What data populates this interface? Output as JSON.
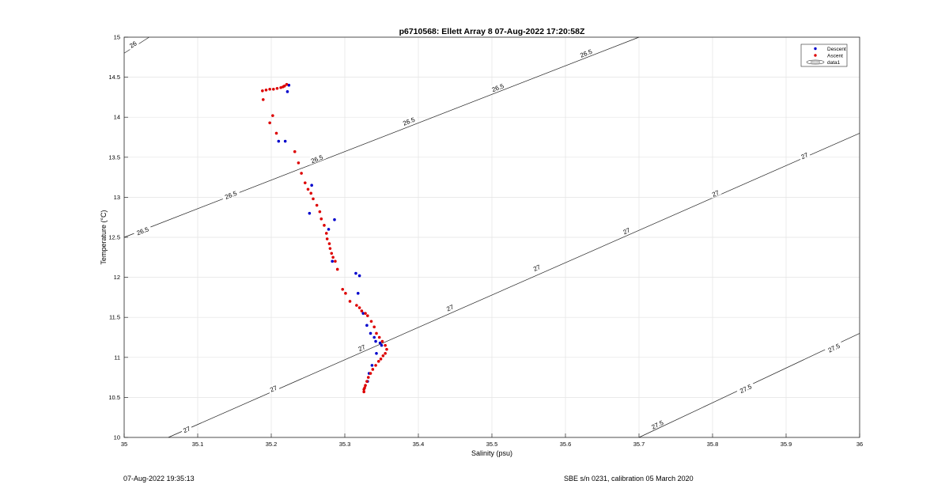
{
  "footer": {
    "timestamp": "07-Aug-2022 19:35:13",
    "calibration": "SBE s/n 0231, calibration 05 March 2020"
  },
  "chart_data": {
    "type": "scatter",
    "title": "p6710568: Ellett Array 8 07-Aug-2022 17:20:58Z",
    "xlabel": "Salinity (psu)",
    "ylabel": "Temperature (°C)",
    "xlim": [
      35,
      36
    ],
    "ylim": [
      10,
      15
    ],
    "x_ticks": [
      "35",
      "35.1",
      "35.2",
      "35.3",
      "35.4",
      "35.5",
      "35.6",
      "35.7",
      "35.8",
      "35.9",
      "36"
    ],
    "y_ticks": [
      "10",
      "10.5",
      "11",
      "11.5",
      "12",
      "12.5",
      "13",
      "13.5",
      "14",
      "14.5",
      "15"
    ],
    "grid": true,
    "legend": {
      "placement": "top-right",
      "entries": [
        "Descent",
        "Ascent",
        "data1"
      ]
    },
    "colors": {
      "descent": "#0000cc",
      "ascent": "#dd0000",
      "contour": "#222222"
    },
    "series": [
      {
        "name": "Descent",
        "x": [
          35.224,
          35.222,
          35.21,
          35.219,
          35.255,
          35.252,
          35.286,
          35.278,
          35.283,
          35.315,
          35.32,
          35.318,
          35.325,
          35.33,
          35.335,
          35.34,
          35.342,
          35.348,
          35.35,
          35.343,
          35.337,
          35.333,
          35.331
        ],
        "y": [
          14.4,
          14.32,
          13.7,
          13.7,
          13.15,
          12.8,
          12.72,
          12.6,
          12.2,
          12.05,
          12.02,
          11.8,
          11.55,
          11.4,
          11.3,
          11.25,
          11.2,
          11.18,
          11.15,
          11.05,
          10.9,
          10.8,
          10.7
        ]
      },
      {
        "name": "Ascent",
        "x": [
          35.188,
          35.193,
          35.198,
          35.203,
          35.208,
          35.213,
          35.216,
          35.218,
          35.221,
          35.189,
          35.202,
          35.198,
          35.207,
          35.232,
          35.237,
          35.241,
          35.246,
          35.25,
          35.254,
          35.257,
          35.262,
          35.266,
          35.268,
          35.272,
          35.275,
          35.276,
          35.279,
          35.28,
          35.282,
          35.284,
          35.287,
          35.29,
          35.297,
          35.301,
          35.307,
          35.316,
          35.32,
          35.323,
          35.328,
          35.331,
          35.336,
          35.34,
          35.343,
          35.347,
          35.351,
          35.355,
          35.357,
          35.355,
          35.352,
          35.349,
          35.346,
          35.342,
          35.338,
          35.335,
          35.332,
          35.33,
          35.328,
          35.327,
          35.326,
          35.326
        ],
        "y": [
          14.33,
          14.34,
          14.35,
          14.35,
          14.36,
          14.37,
          14.38,
          14.39,
          14.41,
          14.22,
          14.02,
          13.93,
          13.8,
          13.57,
          13.43,
          13.3,
          13.18,
          13.1,
          13.05,
          12.98,
          12.9,
          12.82,
          12.73,
          12.65,
          12.55,
          12.48,
          12.42,
          12.36,
          12.3,
          12.25,
          12.2,
          12.1,
          11.85,
          11.8,
          11.7,
          11.65,
          11.62,
          11.58,
          11.55,
          11.52,
          11.45,
          11.38,
          11.3,
          11.25,
          11.2,
          11.15,
          11.1,
          11.05,
          11.02,
          10.98,
          10.95,
          10.9,
          10.85,
          10.8,
          10.75,
          10.7,
          10.65,
          10.62,
          10.6,
          10.57
        ]
      }
    ],
    "contours": [
      {
        "label": "26",
        "x": [
          35,
          35.034
        ],
        "y": [
          14.8,
          15
        ]
      },
      {
        "label": "26.5",
        "x": [
          35,
          35.7
        ],
        "y": [
          12.5,
          15
        ]
      },
      {
        "label": "27",
        "x": [
          35.06,
          36
        ],
        "y": [
          10,
          13.8
        ]
      },
      {
        "label": "27.5",
        "x": [
          35.7,
          36
        ],
        "y": [
          10,
          11.3
        ]
      }
    ],
    "contour_labels": [
      {
        "text": "26",
        "x": 35.012,
        "y": 14.91
      },
      {
        "text": "26.5",
        "x": 35.025,
        "y": 12.58
      },
      {
        "text": "26.5",
        "x": 35.145,
        "y": 13.03
      },
      {
        "text": "26.5",
        "x": 35.262,
        "y": 13.48
      },
      {
        "text": "26.5",
        "x": 35.387,
        "y": 13.95
      },
      {
        "text": "26.5",
        "x": 35.508,
        "y": 14.37
      },
      {
        "text": "26.5",
        "x": 35.628,
        "y": 14.8
      },
      {
        "text": "27",
        "x": 35.085,
        "y": 10.1
      },
      {
        "text": "27",
        "x": 35.203,
        "y": 10.61
      },
      {
        "text": "27",
        "x": 35.323,
        "y": 11.12
      },
      {
        "text": "27",
        "x": 35.443,
        "y": 11.62
      },
      {
        "text": "27",
        "x": 35.561,
        "y": 12.12
      },
      {
        "text": "27",
        "x": 35.683,
        "y": 12.58
      },
      {
        "text": "27",
        "x": 35.804,
        "y": 13.05
      },
      {
        "text": "27",
        "x": 35.925,
        "y": 13.52
      },
      {
        "text": "27.5",
        "x": 35.725,
        "y": 10.16
      },
      {
        "text": "27.5",
        "x": 35.845,
        "y": 10.61
      },
      {
        "text": "27.5",
        "x": 35.965,
        "y": 11.12
      }
    ]
  }
}
